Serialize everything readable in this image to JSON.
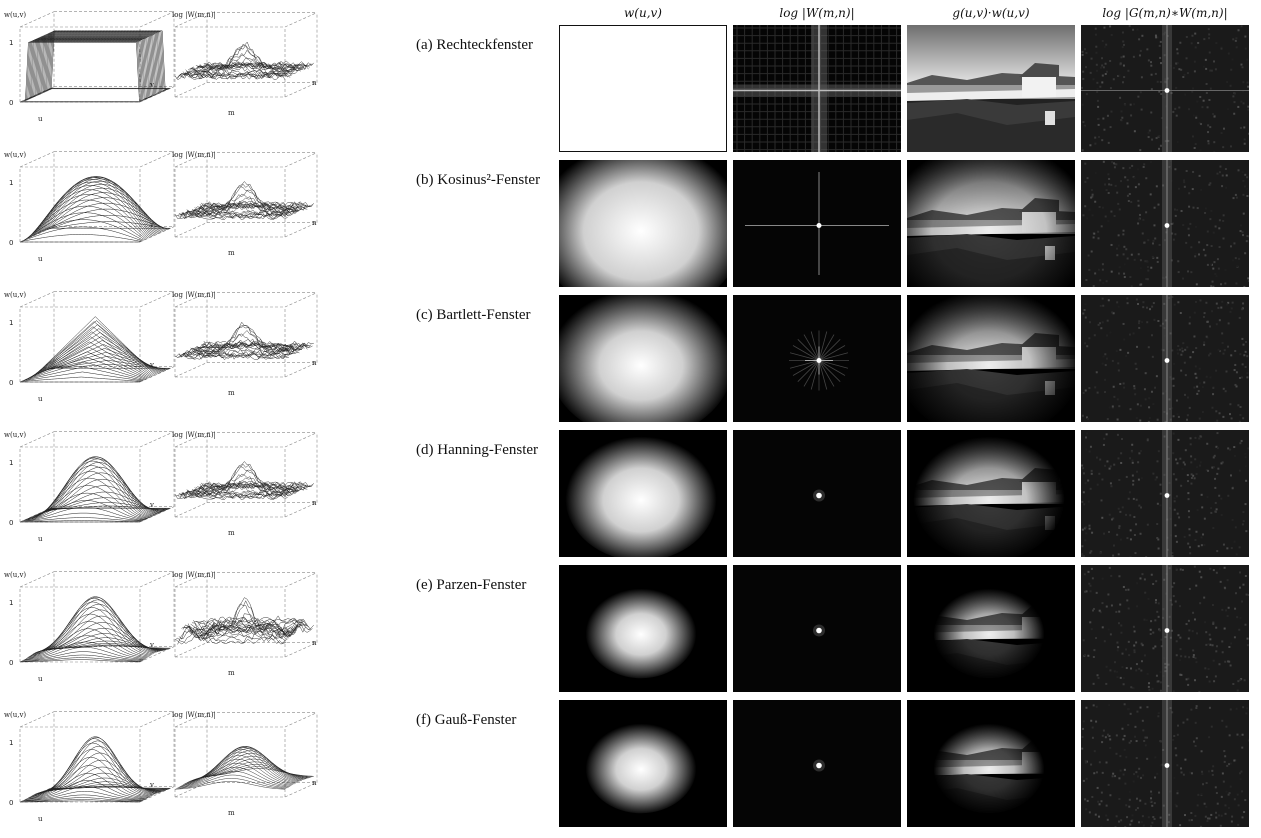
{
  "column_headers": {
    "window": "w(u,v)",
    "window_spectrum": "log |W(m,n)|",
    "windowed_image": "g(u,v)·w(u,v)",
    "windowed_spectrum": "log |G(m,n)∗W(m,n)|"
  },
  "plot_labels": {
    "w_axis": "w(u,v)",
    "spec_axis": "log |W(m,n)|",
    "u_axis": "u",
    "v_axis": "v",
    "m_axis": "m",
    "n_axis": "n",
    "tick_one": "1",
    "tick_zero": "0"
  },
  "rows": [
    {
      "id": "a",
      "label": "(a) Rechteckfenster",
      "window_type": "rectangular"
    },
    {
      "id": "b",
      "label": "(b) Kosinus²-Fenster",
      "window_type": "cosine2"
    },
    {
      "id": "c",
      "label": "(c) Bartlett-Fenster",
      "window_type": "bartlett"
    },
    {
      "id": "d",
      "label": "(d) Hanning-Fenster",
      "window_type": "hanning"
    },
    {
      "id": "e",
      "label": "(e) Parzen-Fenster",
      "window_type": "parzen"
    },
    {
      "id": "f",
      "label": "(f) Gauß-Fenster",
      "window_type": "gauss"
    }
  ]
}
